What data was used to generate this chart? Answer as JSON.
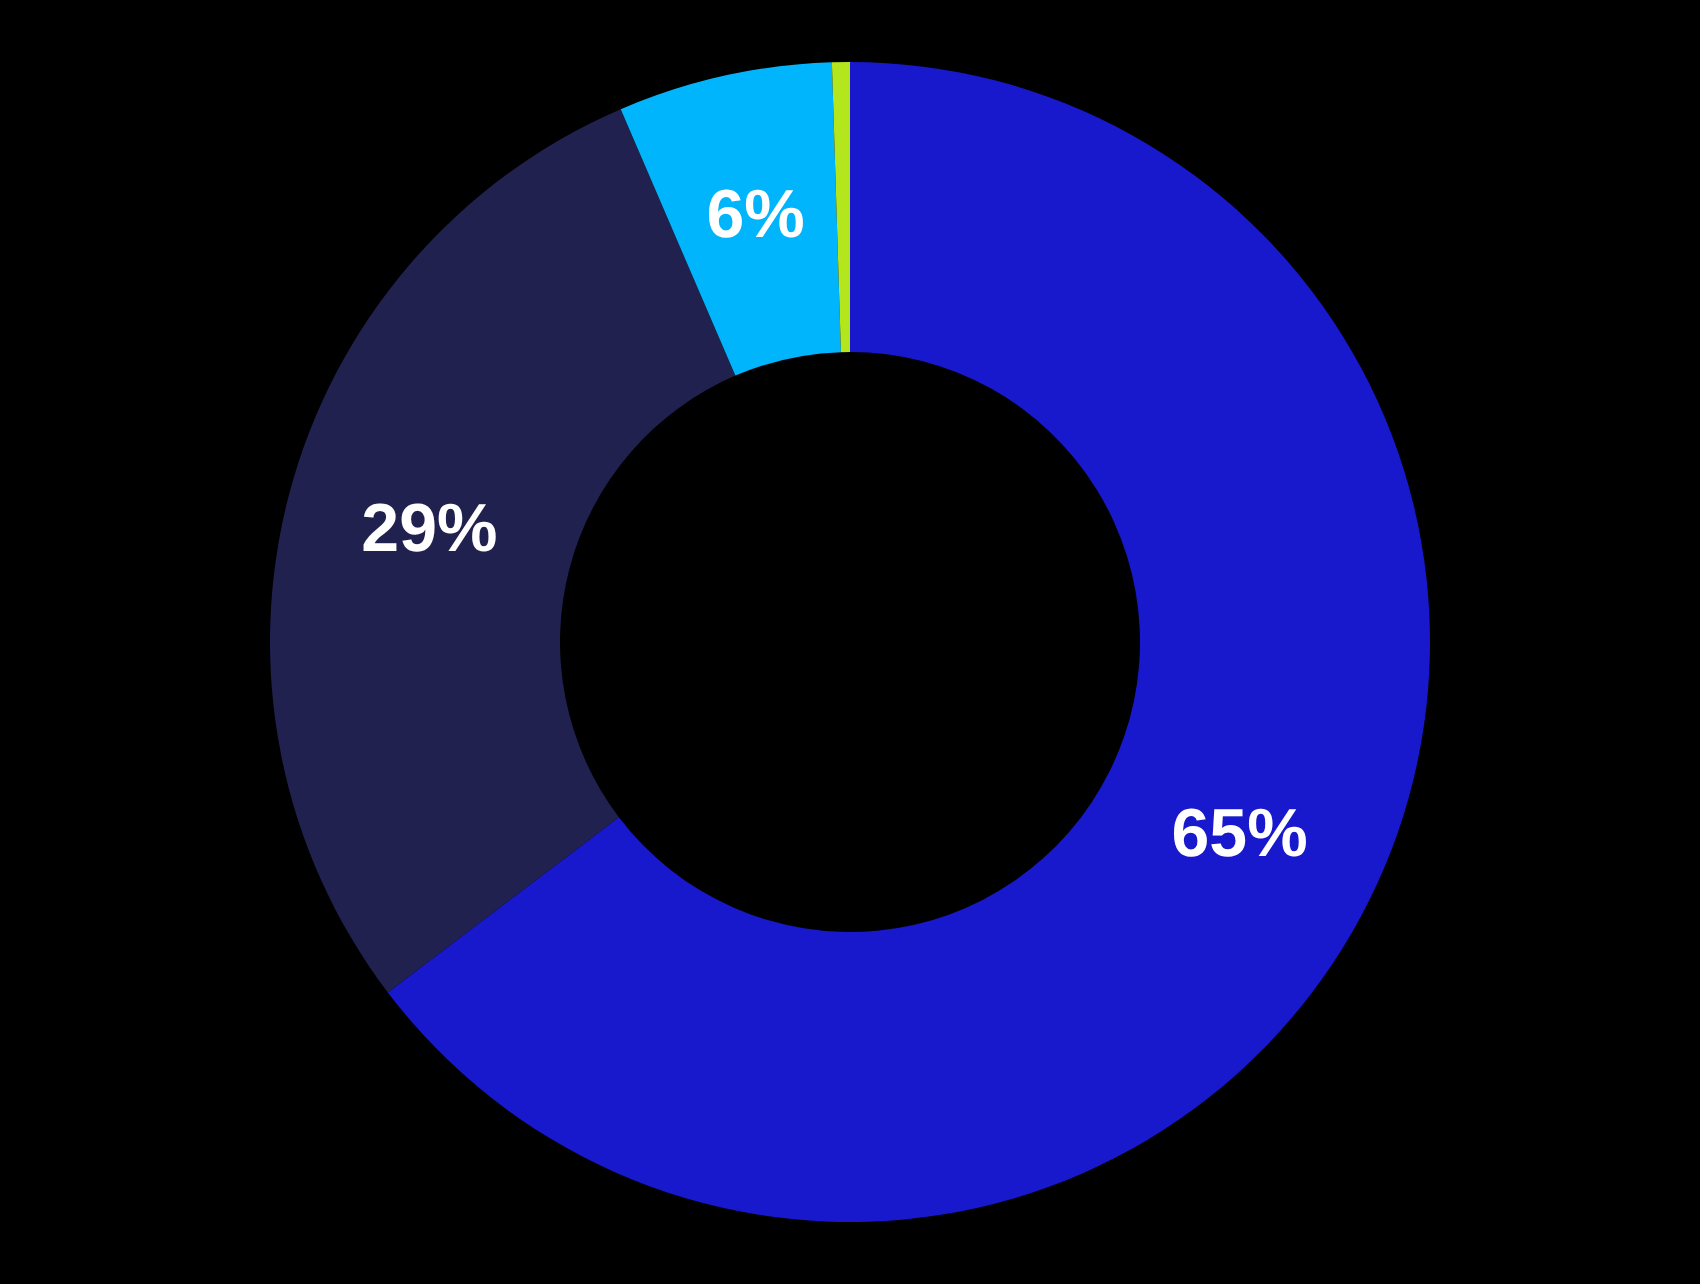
{
  "chart_data": {
    "type": "donut",
    "categories": [
      null,
      null,
      null,
      null
    ],
    "values": [
      65,
      29,
      6,
      0.5
    ],
    "colors": [
      "#1818cc",
      "#20214f",
      "#00b5fb",
      "#b3e61c"
    ],
    "value_labels": [
      "65%",
      "29%",
      "6%",
      null
    ]
  }
}
